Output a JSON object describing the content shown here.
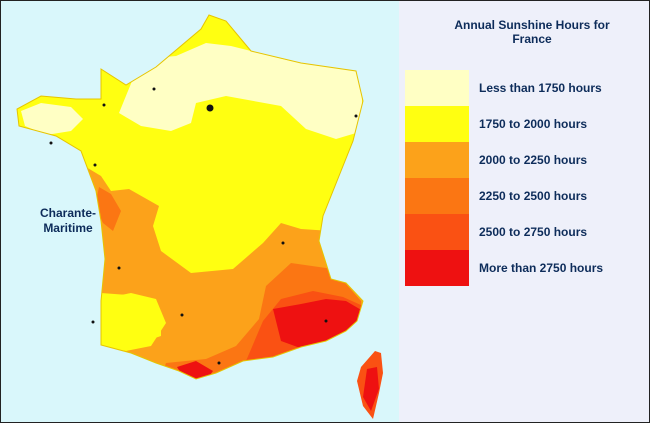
{
  "legend": {
    "title_line1": "Annual Sunshine Hours for",
    "title_line2": "France",
    "items": [
      {
        "label": "Less than 1750 hours",
        "color": "#ffffc4"
      },
      {
        "label": "1750 to 2000 hours",
        "color": "#ffff11"
      },
      {
        "label": "2000 to 2250 hours",
        "color": "#fca21a"
      },
      {
        "label": "2250 to 2500 hours",
        "color": "#fb7613"
      },
      {
        "label": "2500 to 2750 hours",
        "color": "#fa5113"
      },
      {
        "label": "More than 2750 hours",
        "color": "#ee1111"
      }
    ]
  },
  "map": {
    "region_label_line1": "Charante-",
    "region_label_line2": "Maritime"
  }
}
